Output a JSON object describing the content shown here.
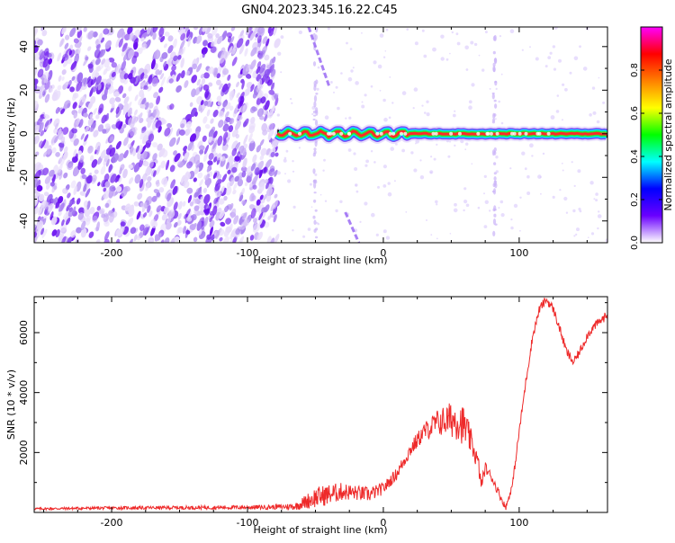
{
  "figure": {
    "title": "GN04.2023.345.16.22.C45"
  },
  "chart_data": [
    {
      "type": "heatmap",
      "title": "GN04.2023.345.16.22.C45",
      "xlabel": "Height of straight line (km)",
      "ylabel": "Frequency (Hz)",
      "xlim": [
        -257,
        165
      ],
      "ylim": [
        -50,
        49
      ],
      "x_ticks": [
        -200,
        -100,
        0,
        100
      ],
      "x_tick_labels": [
        "-200",
        "-100",
        "0",
        "100"
      ],
      "y_ticks": [
        -40,
        -20,
        0,
        20,
        40
      ],
      "y_tick_labels": [
        "-40",
        "-20",
        "0",
        "20",
        "40"
      ],
      "colorbar": {
        "label": "Normalized spectral amplitude",
        "range": [
          0,
          1
        ],
        "ticks": [
          0.0,
          0.2,
          0.4,
          0.6,
          0.8
        ],
        "tick_labels": [
          "0.0",
          "0.2",
          "0.4",
          "0.6",
          "0.8"
        ],
        "colormap": [
          "#ffffff",
          "#6a00ff",
          "#0000ff",
          "#00ffff",
          "#00ff00",
          "#ffff00",
          "#ff8000",
          "#ff0000",
          "#ff00ff"
        ]
      },
      "regions": {
        "noise_band": {
          "x_range": [
            -257,
            -78
          ],
          "f_range": [
            -50,
            49
          ],
          "amplitude": 0.05
        },
        "tone_line": {
          "x_range": [
            -78,
            165
          ],
          "f": 0,
          "amplitude": 1.0
        },
        "diagonal_artifacts": [
          {
            "x0": -55,
            "f0": 49,
            "x1": -40,
            "f1": 22
          },
          {
            "x0": -28,
            "f0": -36,
            "x1": -18,
            "f1": -50
          }
        ],
        "vertical_artifacts": [
          {
            "x": -50,
            "f_range": [
              -50,
              49
            ]
          },
          {
            "x": 82,
            "f_range": [
              -50,
              49
            ]
          }
        ]
      },
      "grid": false
    },
    {
      "type": "line",
      "xlabel": "Height of straight line (km)",
      "ylabel": "SNR (10 * v/v)",
      "xlim": [
        -257,
        165
      ],
      "ylim": [
        0,
        7200
      ],
      "x_ticks": [
        -200,
        -100,
        0,
        100
      ],
      "x_tick_labels": [
        "-200",
        "-100",
        "0",
        "100"
      ],
      "y_ticks": [
        2000,
        4000,
        6000
      ],
      "y_tick_labels": [
        "2000",
        "4000",
        "6000"
      ],
      "color": "#ee2a2a",
      "series": [
        {
          "x": [
            -257,
            -200,
            -150,
            -100,
            -80,
            -65,
            -50,
            -40,
            -30,
            -20,
            -10,
            0,
            10,
            20,
            30,
            40,
            50,
            55,
            60,
            65,
            70,
            72,
            75,
            80,
            85,
            90,
            95,
            100,
            105,
            110,
            115,
            120,
            125,
            130,
            135,
            140,
            145,
            150,
            155,
            160,
            165
          ],
          "values": [
            120,
            150,
            160,
            170,
            180,
            200,
            500,
            600,
            700,
            650,
            600,
            800,
            1300,
            2100,
            2700,
            3000,
            3100,
            3100,
            2850,
            2300,
            1600,
            900,
            1500,
            1150,
            650,
            150,
            900,
            2700,
            4400,
            5900,
            6800,
            7100,
            6800,
            6100,
            5350,
            5000,
            5400,
            5900,
            6200,
            6400,
            6600
          ],
          "noise": [
            40,
            50,
            60,
            70,
            80,
            120,
            350,
            350,
            300,
            250,
            250,
            200,
            200,
            250,
            300,
            450,
            600,
            700,
            650,
            400,
            300,
            200,
            200,
            150,
            150,
            100,
            120,
            150,
            150,
            150,
            150,
            150,
            150,
            150,
            150,
            150,
            150,
            150,
            150,
            150,
            150
          ]
        }
      ],
      "grid": false
    }
  ]
}
